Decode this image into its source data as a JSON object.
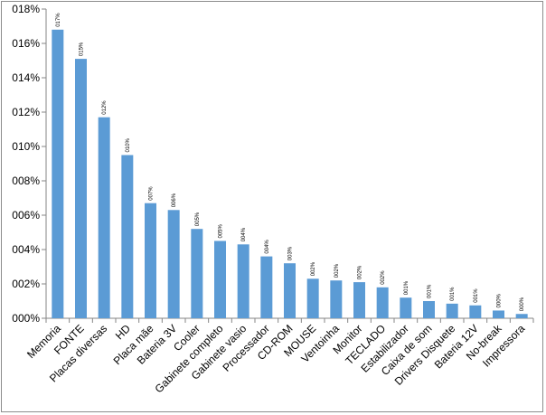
{
  "chart_data": {
    "type": "bar",
    "title": "",
    "xlabel": "",
    "ylabel": "",
    "ylim": [
      0,
      0.18
    ],
    "y_ticks": [
      0,
      0.02,
      0.04,
      0.06,
      0.08,
      0.1,
      0.12,
      0.14,
      0.16,
      0.18
    ],
    "y_tick_labels": [
      "000%",
      "002%",
      "004%",
      "006%",
      "008%",
      "010%",
      "012%",
      "014%",
      "016%",
      "018%"
    ],
    "grid": false,
    "legend": "none",
    "bar_color": "#5b9bd5",
    "categories": [
      "Memoria",
      "FONTE",
      "Placas diversas",
      "HD",
      "Placa mãe",
      "Bateria 3V",
      "Cooler",
      "Gabinete completo",
      "Gabinete vasio",
      "Processador",
      "CD-ROM",
      "MOUSE",
      "Ventoinha",
      "Monitor",
      "TECLADO",
      "Estabilizador",
      "Caixa de som",
      "Drivers Disquete",
      "Bateria 12V",
      "No-break",
      "Impressora"
    ],
    "values": [
      0.168,
      0.151,
      0.117,
      0.095,
      0.067,
      0.063,
      0.052,
      0.045,
      0.043,
      0.036,
      0.032,
      0.023,
      0.022,
      0.021,
      0.018,
      0.012,
      0.01,
      0.0085,
      0.0075,
      0.0045,
      0.0025
    ],
    "data_labels": [
      "017%",
      "015%",
      "012%",
      "010%",
      "007%",
      "006%",
      "005%",
      "005%",
      "004%",
      "004%",
      "003%",
      "002%",
      "002%",
      "002%",
      "002%",
      "001%",
      "001%",
      "001%",
      "001%",
      "000%",
      "000%"
    ]
  }
}
